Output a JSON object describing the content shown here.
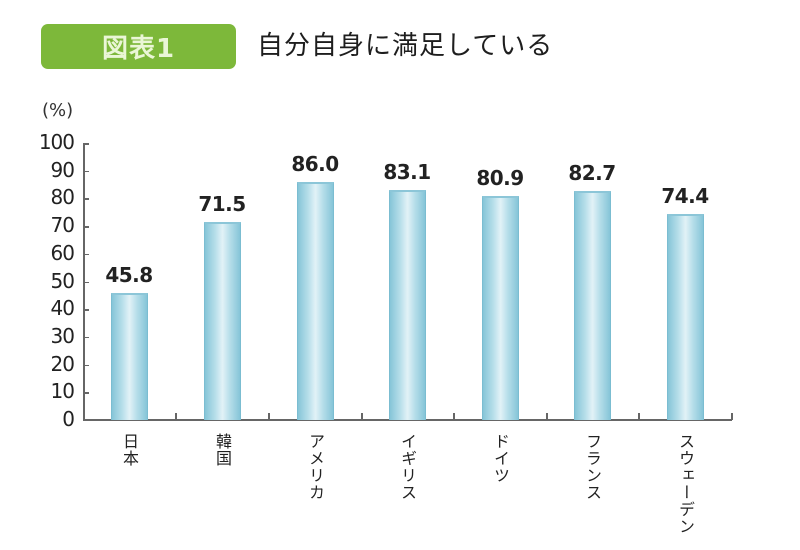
{
  "header": {
    "badge_label": "図表1",
    "title": "自分自身に満足している"
  },
  "colors": {
    "badge_bg": "#7db83a",
    "bar_fill": "#b8dfea",
    "bar_edge": "#7bbdd1",
    "axis": "#666666"
  },
  "chart_data": {
    "type": "bar",
    "title": "自分自身に満足している",
    "figure_label": "図表1",
    "xlabel": "",
    "ylabel": "(%)",
    "ylim": [
      0,
      100
    ],
    "yticks": [
      0,
      10,
      20,
      30,
      40,
      50,
      60,
      70,
      80,
      90,
      100
    ],
    "grid": false,
    "legend": null,
    "categories": [
      "日本",
      "韓国",
      "アメリカ",
      "イギリス",
      "ドイツ",
      "フランス",
      "スウェーデン"
    ],
    "values": [
      45.8,
      71.5,
      86.0,
      83.1,
      80.9,
      82.7,
      74.4
    ],
    "value_labels": [
      "45.8",
      "71.5",
      "86.0",
      "83.1",
      "80.9",
      "82.7",
      "74.4"
    ]
  }
}
